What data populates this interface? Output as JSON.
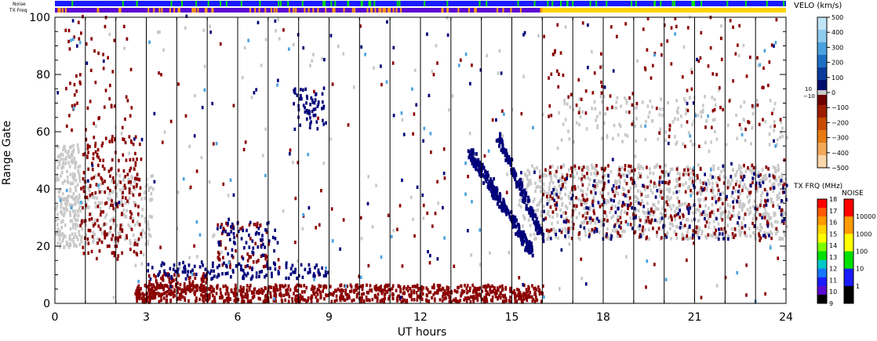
{
  "header": {
    "noise_label": "Noise",
    "txfreq_label": "TX Freq"
  },
  "chart_data": {
    "type": "scatter",
    "xlabel": "UT hours",
    "ylabel": "Range Gate",
    "xlim": [
      0,
      24
    ],
    "ylim": [
      0,
      100
    ],
    "x_ticks": [
      0,
      3,
      6,
      9,
      12,
      15,
      18,
      21,
      24
    ],
    "x_tick_labels": [
      "0",
      "3",
      "6",
      "9",
      "12",
      "15",
      "18",
      "21",
      "24"
    ],
    "y_ticks": [
      0,
      20,
      40,
      60,
      80,
      100
    ],
    "y_tick_labels": [
      "0",
      "20",
      "40",
      "60",
      "80",
      "100"
    ],
    "hour_lines": [
      1,
      2,
      3,
      4,
      5,
      6,
      7,
      8,
      9,
      10,
      11,
      12,
      13,
      14,
      15,
      16,
      17,
      18,
      19,
      20,
      21,
      22,
      23
    ],
    "grid": false,
    "colorbars": [
      {
        "title": "VELO (km/s)",
        "tick_labels": [
          "500",
          "400",
          "300",
          "200",
          "100",
          "0",
          "−100",
          "−200",
          "−300",
          "−400",
          "−500"
        ],
        "tick_values": [
          500,
          400,
          300,
          200,
          100,
          0,
          -100,
          -200,
          -300,
          -400,
          -500
        ],
        "ground_scatter_labels": [
          "10",
          "−10"
        ],
        "colors": [
          "#bfe3f7",
          "#8fcaef",
          "#4aa2de",
          "#1d6fc4",
          "#0a3b9c",
          "#000d6e",
          "#6e0000",
          "#9c1c00",
          "#c84a00",
          "#e67a14",
          "#f3a85a",
          "#fbd6a8"
        ]
      },
      {
        "title": "TX FRQ (MHz)",
        "tick_labels": [
          "18",
          "17",
          "16",
          "15",
          "14",
          "13",
          "12",
          "11",
          "10",
          "9"
        ],
        "colors": [
          "#ff0000",
          "#ff5a00",
          "#ff9a00",
          "#ffd400",
          "#ffff00",
          "#7cff00",
          "#00e000",
          "#00c8c8",
          "#1478ff",
          "#1a1aff",
          "#5a0ad2",
          "#000000"
        ]
      },
      {
        "title": "NOISE",
        "tick_labels": [
          "10000",
          "1000",
          "100",
          "10",
          "1"
        ],
        "colors": [
          "#ff0000",
          "#ff9a00",
          "#ffff00",
          "#00e000",
          "#1a1aff",
          "#000000"
        ]
      }
    ],
    "series": [
      {
        "key": "ground_scatter",
        "color": "#c8c8c8",
        "clusters": [
          {
            "x": [
              0,
              0.8
            ],
            "y": [
              19,
              55
            ],
            "n": 220
          },
          {
            "x": [
              0.8,
              3.2
            ],
            "y": [
              20,
              45
            ],
            "n": 180
          },
          {
            "x": [
              15.2,
              24
            ],
            "y": [
              22,
              48
            ],
            "n": 900
          },
          {
            "x": [
              16.5,
              24
            ],
            "y": [
              55,
              72
            ],
            "n": 160
          },
          {
            "x": [
              0.5,
              24
            ],
            "y": [
              0,
              100
            ],
            "n": 150
          }
        ]
      },
      {
        "key": "negative_velocity",
        "color": "#8b0000",
        "clusters": [
          {
            "x": [
              0.8,
              2.8
            ],
            "y": [
              15,
              58
            ],
            "n": 220
          },
          {
            "x": [
              0.3,
              2.5
            ],
            "y": [
              60,
              100
            ],
            "n": 60
          },
          {
            "x": [
              2.6,
              16
            ],
            "y": [
              0,
              6
            ],
            "n": 900
          },
          {
            "x": [
              3,
              5
            ],
            "y": [
              2,
              10
            ],
            "n": 100
          },
          {
            "x": [
              5.3,
              7
            ],
            "y": [
              12,
              28
            ],
            "n": 60
          },
          {
            "x": [
              16,
              24
            ],
            "y": [
              22,
              48
            ],
            "n": 300
          },
          {
            "x": [
              16,
              24
            ],
            "y": [
              60,
              100
            ],
            "n": 90
          },
          {
            "x": [
              3,
              24
            ],
            "y": [
              0,
              100
            ],
            "n": 140
          }
        ]
      },
      {
        "key": "positive_velocity",
        "color": "#00007a",
        "clusters": [
          {
            "x": [
              3,
              9
            ],
            "y": [
              8,
              14
            ],
            "n": 140
          },
          {
            "x": [
              7.8,
              8.8
            ],
            "y": [
              60,
              75
            ],
            "n": 60
          },
          {
            "x": [
              5.3,
              7.3
            ],
            "y": [
              15,
              28
            ],
            "n": 60
          },
          {
            "x": [
              16,
              24
            ],
            "y": [
              22,
              45
            ],
            "n": 150
          },
          {
            "x": [
              0,
              24
            ],
            "y": [
              0,
              100
            ],
            "n": 90
          }
        ],
        "streaks": [
          {
            "x0": 13.6,
            "y0": 52,
            "x1": 15.6,
            "y1": 18,
            "width": 4,
            "n": 260
          },
          {
            "x0": 14.5,
            "y0": 58,
            "x1": 16,
            "y1": 22,
            "width": 3,
            "n": 160
          }
        ]
      },
      {
        "key": "light_velocity",
        "color": "#4aa2de",
        "clusters": [
          {
            "x": [
              0,
              24
            ],
            "y": [
              0,
              100
            ],
            "n": 70
          }
        ]
      }
    ],
    "tx_freq_strip": [
      {
        "x": [
          0,
          16
        ],
        "color": "#5a0ad2"
      },
      {
        "x": [
          16,
          24
        ],
        "color": "#ffd400"
      }
    ],
    "noise_strip_color": "#1a1aff"
  }
}
